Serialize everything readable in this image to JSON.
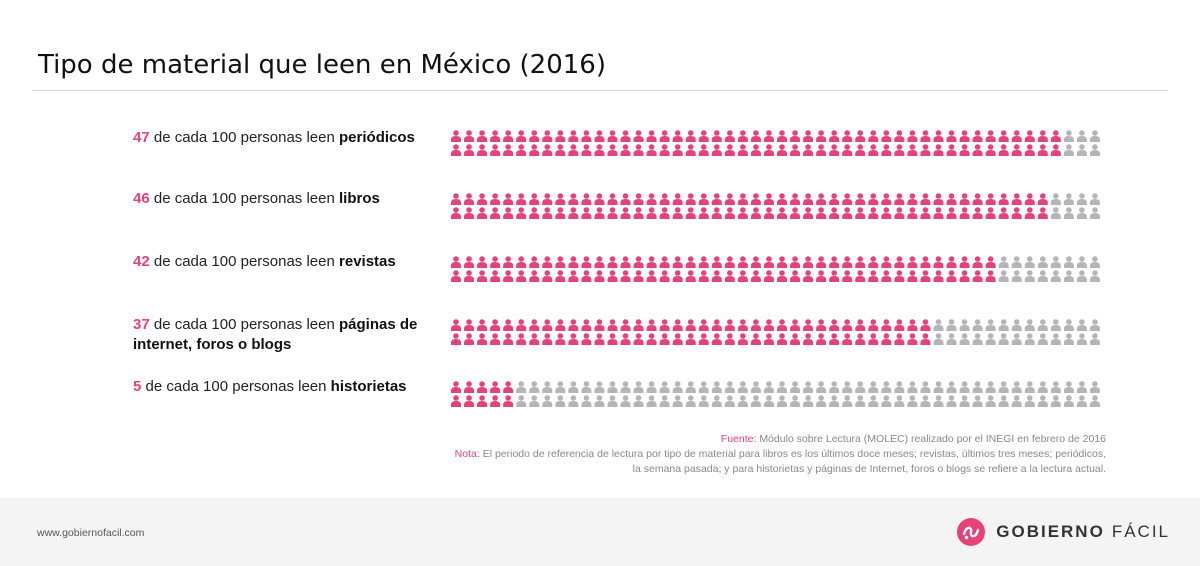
{
  "title": "Tipo de material que leen en México (2016)",
  "colors": {
    "accent": "#e6427a",
    "inactive": "#b5b5b5"
  },
  "rows": [
    {
      "num": "47",
      "text": "de cada 100 personas leen",
      "material": "periódicos"
    },
    {
      "num": "46",
      "text": "de cada 100 personas leen",
      "material": "libros"
    },
    {
      "num": "42",
      "text": "de cada 100 personas leen",
      "material": "revistas"
    },
    {
      "num": "37",
      "text": "de cada 100 personas leen",
      "material": "páginas de internet, foros o blogs"
    },
    {
      "num": "5",
      "text": "de cada 100 personas leen",
      "material": "historietas"
    }
  ],
  "chart_data": {
    "type": "bar",
    "categories": [
      "periódicos",
      "libros",
      "revistas",
      "páginas de internet, foros o blogs",
      "historietas"
    ],
    "values": [
      47,
      46,
      42,
      37,
      5
    ],
    "total": 100,
    "ylim": [
      0,
      100
    ]
  },
  "source": {
    "fuente_label": "Fuente:",
    "fuente_text": "Módulo sobre Lectura (MOLEC) realizado por el INEGI en febrero de 2016",
    "nota_label": "Nota:",
    "nota_text_1": "El periodo de referencia de lectura por tipo de material para libros es los últimos doce meses; revistas, últimos tres meses; periódicos,",
    "nota_text_2": "la semana pasada; y para historietas y páginas de Internet, foros o blogs se refiere a la lectura actual."
  },
  "footer": {
    "url": "www.gobiernofacil.com",
    "brand_bold": "GOBIERNO",
    "brand_light": "FÁCIL",
    "logo_icon": "gobierno-facil-logo-icon"
  }
}
